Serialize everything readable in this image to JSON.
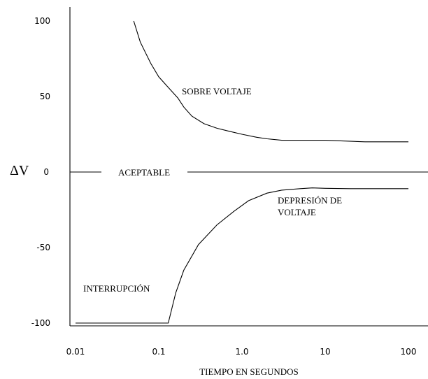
{
  "chart_data": {
    "type": "line",
    "xscale": "log",
    "xlim": [
      0.01,
      100
    ],
    "ylim": [
      -100,
      100
    ],
    "x_ticks": [
      "0.01",
      "0.1",
      "1.0",
      "10",
      "100"
    ],
    "y_ticks": [
      "100",
      "50",
      "0",
      "-50",
      "-100"
    ],
    "xlabel": "TIEMPO EN SEGUNDOS",
    "ylabel": "ΔV",
    "grid": false,
    "annotations": [
      {
        "key": "overvoltage",
        "text": "SOBRE VOLTAJE"
      },
      {
        "key": "acceptable",
        "text": "ACEPTABLE"
      },
      {
        "key": "sag1",
        "text": "DEPRESIÓN DE"
      },
      {
        "key": "sag2",
        "text": "VOLTAJE"
      },
      {
        "key": "interruption",
        "text": "INTERRUPCIÓN"
      }
    ],
    "series": [
      {
        "key": "overvoltage",
        "points": [
          [
            0.05,
            100
          ],
          [
            0.06,
            86
          ],
          [
            0.08,
            72
          ],
          [
            0.1,
            63
          ],
          [
            0.13,
            56
          ],
          [
            0.17,
            49
          ],
          [
            0.2,
            43
          ],
          [
            0.25,
            37
          ],
          [
            0.35,
            32
          ],
          [
            0.5,
            29
          ],
          [
            0.7,
            27
          ],
          [
            1.0,
            25
          ],
          [
            1.5,
            23
          ],
          [
            2,
            22
          ],
          [
            3,
            21
          ],
          [
            5,
            21
          ],
          [
            10,
            21
          ],
          [
            30,
            20
          ],
          [
            100,
            20
          ]
        ]
      },
      {
        "key": "acceptable",
        "points": [
          [
            0.01,
            0
          ],
          [
            100,
            0
          ]
        ]
      },
      {
        "key": "sag",
        "points": [
          [
            0.01,
            -100
          ],
          [
            0.13,
            -100
          ],
          [
            0.16,
            -80
          ],
          [
            0.2,
            -65
          ],
          [
            0.3,
            -48
          ],
          [
            0.5,
            -35
          ],
          [
            0.8,
            -26
          ],
          [
            1.2,
            -19
          ],
          [
            2,
            -14
          ],
          [
            3,
            -12
          ],
          [
            5,
            -11
          ],
          [
            7,
            -10.5
          ],
          [
            10,
            -10.8
          ],
          [
            20,
            -11
          ],
          [
            100,
            -11
          ]
        ]
      }
    ]
  }
}
